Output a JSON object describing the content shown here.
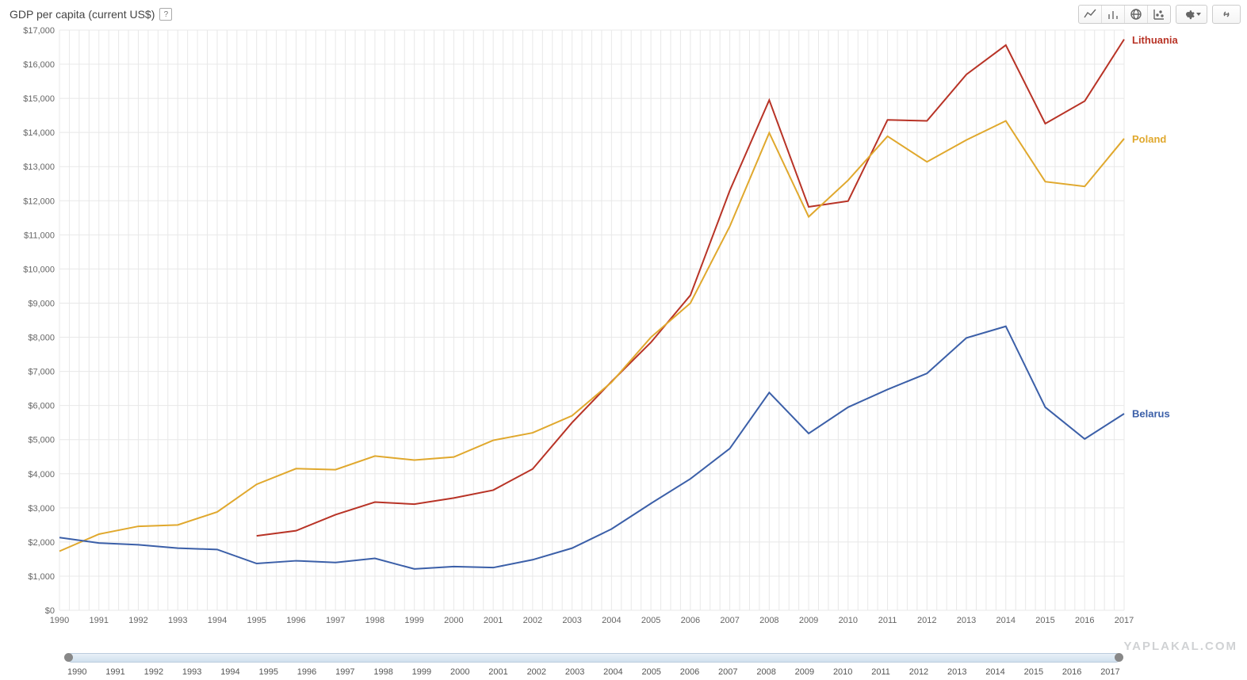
{
  "title": "GDP per capita (current US$)",
  "help_symbol": "?",
  "toolbar": {
    "icons": [
      "line-chart-icon",
      "bar-chart-icon",
      "globe-icon",
      "scatter-icon",
      "gear-icon",
      "link-icon"
    ]
  },
  "chart": {
    "type": "line",
    "background_color": "#ffffff",
    "grid_color": "#e8e8e8",
    "axis_text_color": "#666666",
    "axis_fontsize": 11,
    "line_width": 2,
    "ylim": [
      0,
      17000
    ],
    "ytick_step": 1000,
    "ytick_prefix": "$",
    "ytick_thousands_sep": ",",
    "x_years": [
      1990,
      1991,
      1992,
      1993,
      1994,
      1995,
      1996,
      1997,
      1998,
      1999,
      2000,
      2001,
      2002,
      2003,
      2004,
      2005,
      2006,
      2007,
      2008,
      2009,
      2010,
      2011,
      2012,
      2013,
      2014,
      2015,
      2016,
      2017
    ],
    "x_major_step": 1,
    "x_minor_divisions": 4,
    "label_fontsize": 13,
    "series": [
      {
        "name": "Lithuania",
        "label": "Lithuania",
        "color": "#b83326",
        "label_y": 16700,
        "data": {
          "1995": 2180,
          "1996": 2330,
          "1997": 2800,
          "1998": 3170,
          "1999": 3110,
          "2000": 3290,
          "2001": 3520,
          "2002": 4140,
          "2003": 5500,
          "2004": 6700,
          "2005": 7850,
          "2006": 9230,
          "2007": 12300,
          "2008": 14950,
          "2009": 11820,
          "2010": 11990,
          "2011": 14370,
          "2012": 14340,
          "2013": 15700,
          "2014": 16560,
          "2015": 14260,
          "2016": 14920,
          "2017": 16730
        }
      },
      {
        "name": "Poland",
        "label": "Poland",
        "color": "#e0a82d",
        "label_y": 13800,
        "data": {
          "1990": 1730,
          "1991": 2230,
          "1992": 2460,
          "1993": 2500,
          "1994": 2880,
          "1995": 3690,
          "1996": 4150,
          "1997": 4120,
          "1998": 4520,
          "1999": 4400,
          "2000": 4490,
          "2001": 4980,
          "2002": 5200,
          "2003": 5700,
          "2004": 6680,
          "2005": 8000,
          "2006": 9000,
          "2007": 11250,
          "2008": 13990,
          "2009": 11530,
          "2010": 12600,
          "2011": 13890,
          "2012": 13140,
          "2013": 13780,
          "2014": 14340,
          "2015": 12560,
          "2016": 12420,
          "2017": 13820
        }
      },
      {
        "name": "Belarus",
        "label": "Belarus",
        "color": "#3b5fa8",
        "label_y": 5750,
        "data": {
          "1990": 2130,
          "1991": 1970,
          "1992": 1920,
          "1993": 1820,
          "1994": 1780,
          "1995": 1370,
          "1996": 1450,
          "1997": 1400,
          "1998": 1520,
          "1999": 1210,
          "2000": 1280,
          "2001": 1250,
          "2002": 1480,
          "2003": 1820,
          "2004": 2380,
          "2005": 3130,
          "2006": 3850,
          "2007": 4740,
          "2008": 6380,
          "2009": 5180,
          "2010": 5950,
          "2011": 6470,
          "2012": 6940,
          "2013": 7980,
          "2014": 8320,
          "2015": 5950,
          "2016": 5020,
          "2017": 5760
        }
      }
    ]
  },
  "slider": {
    "min": 1990,
    "max": 2017,
    "labels": [
      1990,
      1991,
      1992,
      1993,
      1994,
      1995,
      1996,
      1997,
      1998,
      1999,
      2000,
      2001,
      2002,
      2003,
      2004,
      2005,
      2006,
      2007,
      2008,
      2009,
      2010,
      2011,
      2012,
      2013,
      2014,
      2015,
      2016,
      2017
    ]
  },
  "watermark": "YAPLAKAL.COM"
}
